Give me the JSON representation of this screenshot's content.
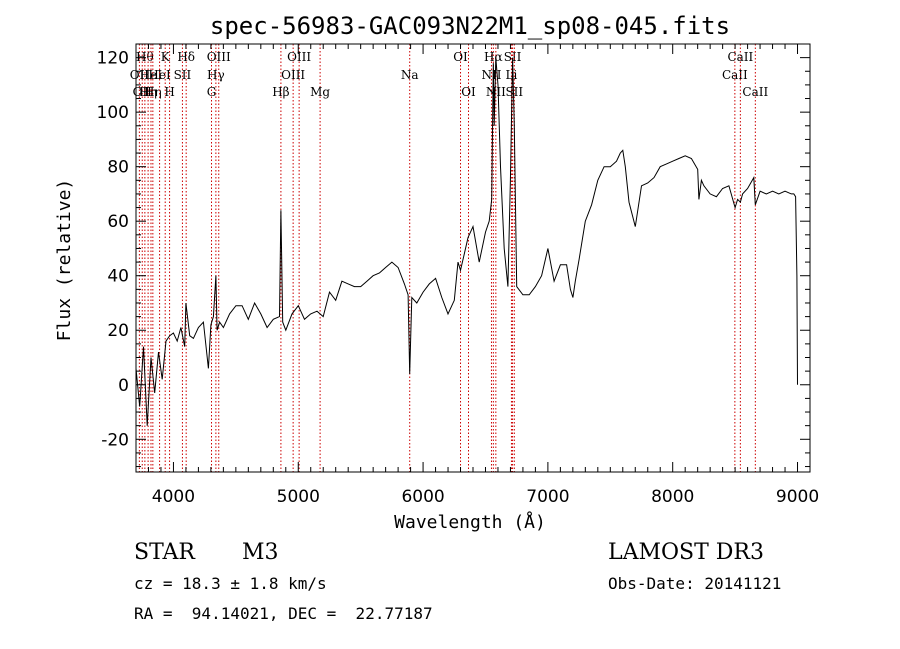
{
  "chart_data": {
    "type": "line",
    "title": "spec-56983-GAC093N22M1_sp08-045.fits",
    "xlabel": "Wavelength (Å)",
    "ylabel": "Flux (relative)",
    "xlim": [
      3700,
      9100
    ],
    "ylim": [
      -32,
      125
    ],
    "x_ticks": [
      4000,
      5000,
      6000,
      7000,
      8000,
      9000
    ],
    "y_ticks": [
      -20,
      0,
      20,
      40,
      60,
      80,
      100,
      120
    ],
    "series": [
      {
        "name": "flux",
        "x": [
          3700,
          3730,
          3760,
          3790,
          3820,
          3850,
          3880,
          3910,
          3940,
          3970,
          4000,
          4030,
          4060,
          4090,
          4100,
          4130,
          4160,
          4200,
          4240,
          4280,
          4300,
          4320,
          4340,
          4350,
          4370,
          4400,
          4450,
          4500,
          4550,
          4600,
          4650,
          4700,
          4750,
          4800,
          4850,
          4861,
          4875,
          4900,
          4950,
          5000,
          5050,
          5100,
          5150,
          5200,
          5250,
          5300,
          5350,
          5400,
          5450,
          5500,
          5550,
          5600,
          5650,
          5700,
          5750,
          5800,
          5850,
          5880,
          5893,
          5910,
          5950,
          6000,
          6050,
          6100,
          6150,
          6200,
          6250,
          6280,
          6300,
          6330,
          6360,
          6400,
          6450,
          6500,
          6530,
          6550,
          6563,
          6570,
          6583,
          6600,
          6620,
          6650,
          6680,
          6700,
          6717,
          6731,
          6750,
          6800,
          6850,
          6900,
          6950,
          7000,
          7050,
          7100,
          7150,
          7180,
          7200,
          7220,
          7250,
          7300,
          7350,
          7400,
          7450,
          7500,
          7550,
          7580,
          7600,
          7620,
          7650,
          7700,
          7750,
          7800,
          7850,
          7900,
          7950,
          8000,
          8050,
          8100,
          8150,
          8200,
          8210,
          8230,
          8250,
          8300,
          8350,
          8400,
          8450,
          8500,
          8520,
          8542,
          8560,
          8600,
          8650,
          8662,
          8700,
          8750,
          8800,
          8850,
          8900,
          8950,
          8970,
          8985,
          8995,
          9000
        ],
        "values": [
          6,
          -8,
          14,
          -15,
          10,
          -3,
          12,
          2,
          16,
          18,
          19,
          16,
          21,
          14,
          30,
          18,
          17,
          21,
          23,
          6,
          22,
          25,
          40,
          20,
          23,
          21,
          26,
          29,
          29,
          24,
          30,
          26,
          21,
          24,
          25,
          64,
          23,
          20,
          26,
          29,
          24,
          26,
          27,
          25,
          34,
          31,
          38,
          37,
          36,
          36,
          38,
          40,
          41,
          43,
          45,
          43,
          37,
          33,
          4,
          32,
          30,
          34,
          37,
          39,
          32,
          26,
          31,
          45,
          42,
          48,
          54,
          58,
          45,
          56,
          60,
          68,
          118,
          95,
          120,
          110,
          80,
          50,
          36,
          75,
          120,
          95,
          36,
          33,
          33,
          36,
          40,
          50,
          38,
          44,
          44,
          35,
          32,
          38,
          46,
          60,
          66,
          75,
          80,
          80,
          82,
          85,
          86,
          80,
          67,
          58,
          73,
          74,
          76,
          80,
          81,
          82,
          83,
          84,
          83,
          79,
          68,
          75,
          73,
          70,
          69,
          72,
          73,
          65,
          68,
          67,
          70,
          72,
          76,
          66,
          71,
          70,
          71,
          70,
          71,
          70,
          70,
          69,
          40,
          0
        ]
      }
    ],
    "lines": [
      {
        "wave": 3727,
        "label": "OII",
        "row": 2
      },
      {
        "wave": 3750,
        "label": "OII",
        "row": 3
      },
      {
        "wave": 3771,
        "label": "Hθ",
        "row": 1
      },
      {
        "wave": 3797,
        "label": "Hη",
        "row": 3
      },
      {
        "wave": 3820,
        "label": "HeI",
        "row": 2
      },
      {
        "wave": 3835,
        "label": "Hη",
        "row": 3
      },
      {
        "wave": 3889,
        "label": "HeI",
        "row": 2
      },
      {
        "wave": 3934,
        "label": "K",
        "row": 1
      },
      {
        "wave": 3969,
        "label": "H",
        "row": 3
      },
      {
        "wave": 4072,
        "label": "SII",
        "row": 2
      },
      {
        "wave": 4102,
        "label": "Hδ",
        "row": 1
      },
      {
        "wave": 4305,
        "label": "G",
        "row": 3
      },
      {
        "wave": 4340,
        "label": "Hγ",
        "row": 2
      },
      {
        "wave": 4363,
        "label": "OIII",
        "row": 1
      },
      {
        "wave": 4861,
        "label": "Hβ",
        "row": 3
      },
      {
        "wave": 4959,
        "label": "OIII",
        "row": 2
      },
      {
        "wave": 5007,
        "label": "OIII",
        "row": 1
      },
      {
        "wave": 5175,
        "label": "Mg",
        "row": 3
      },
      {
        "wave": 5893,
        "label": "Na",
        "row": 2
      },
      {
        "wave": 6300,
        "label": "OI",
        "row": 1
      },
      {
        "wave": 6364,
        "label": "OI",
        "row": 3
      },
      {
        "wave": 6548,
        "label": "NII",
        "row": 2
      },
      {
        "wave": 6563,
        "label": "Hα",
        "row": 1
      },
      {
        "wave": 6583,
        "label": "NII",
        "row": 3
      },
      {
        "wave": 6708,
        "label": "Li",
        "row": 2
      },
      {
        "wave": 6717,
        "label": "SII",
        "row": 1
      },
      {
        "wave": 6731,
        "label": "SII",
        "row": 3
      },
      {
        "wave": 8498,
        "label": "CaII",
        "row": 2
      },
      {
        "wave": 8542,
        "label": "CaII",
        "row": 1
      },
      {
        "wave": 8662,
        "label": "CaII",
        "row": 3
      }
    ]
  },
  "info": {
    "object_class": "STAR",
    "subclass": "M3",
    "survey": "LAMOST DR3",
    "redshift": "cz = 18.3 ± 1.8 km/s",
    "obs_date": "Obs-Date: 20141121",
    "coords": "RA =  94.14021, DEC =  22.77187"
  }
}
